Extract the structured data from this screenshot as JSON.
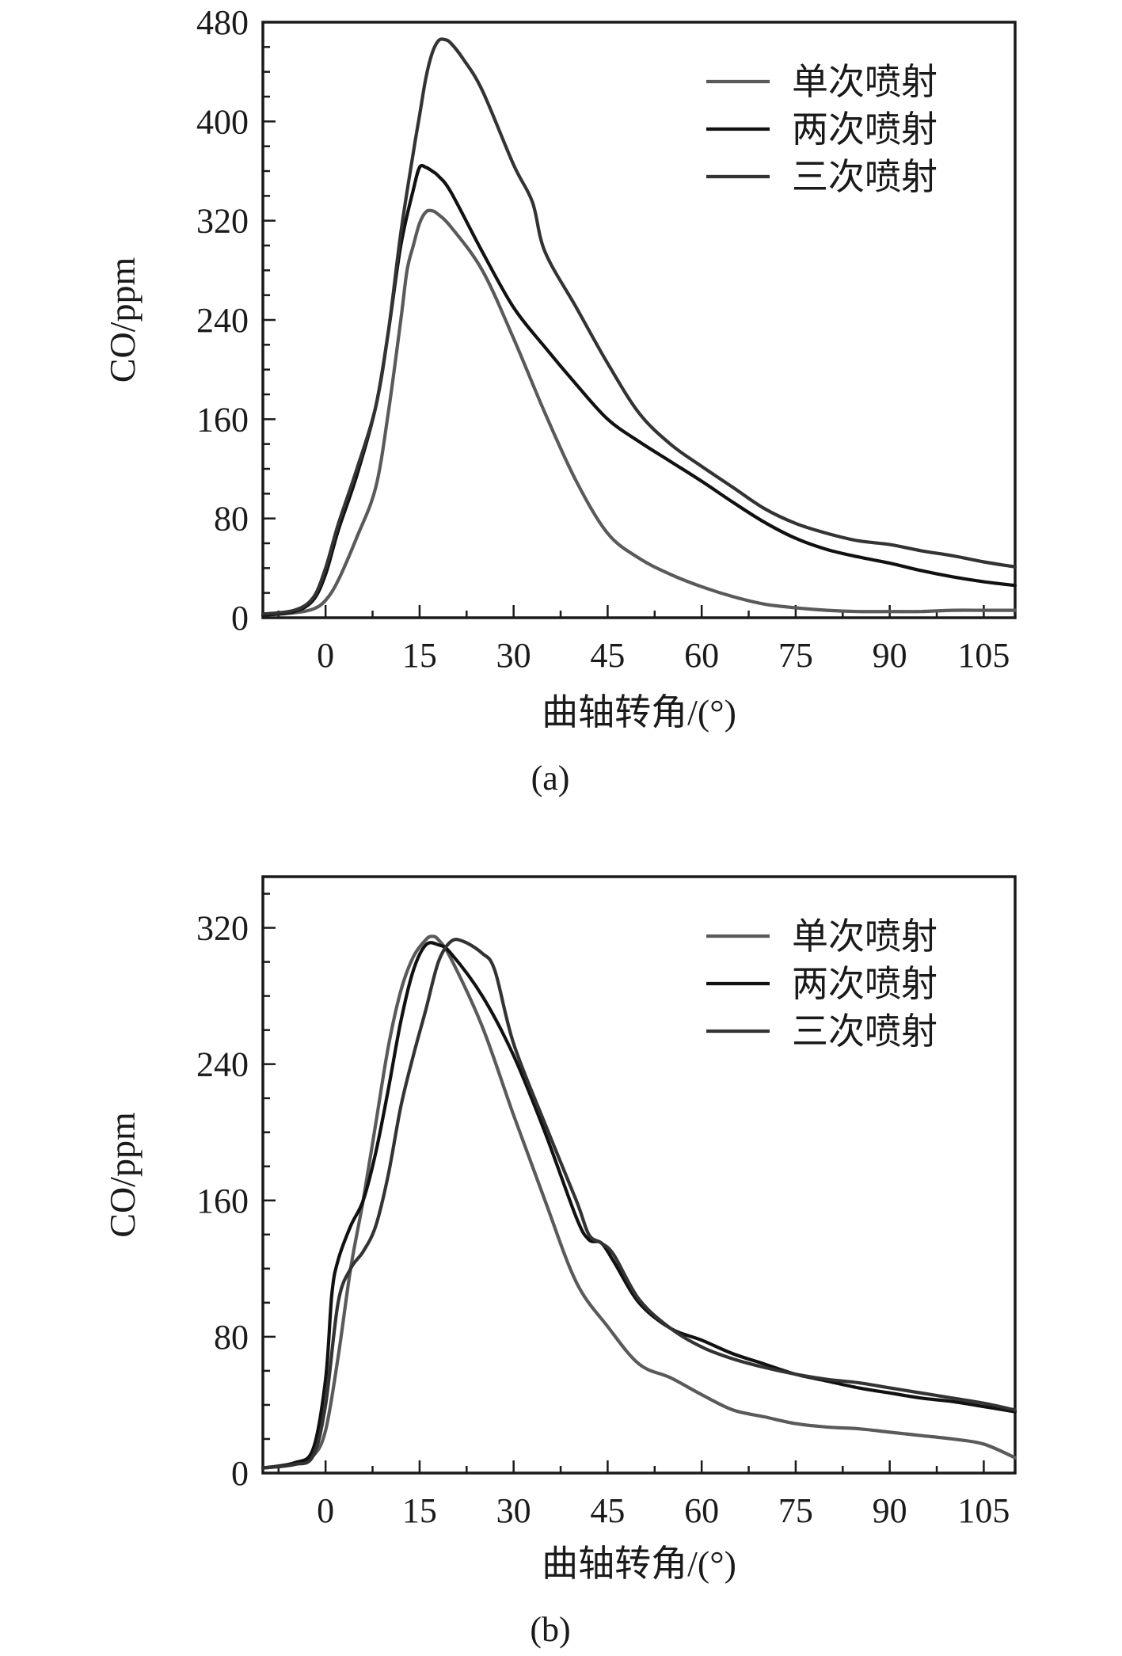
{
  "chart_data": [
    {
      "type": "line",
      "panel_label": "(a)",
      "xlabel": "曲轴转角/(°)",
      "ylabel": "CO/ppm",
      "xlim": [
        -10,
        110
      ],
      "ylim": [
        0,
        480
      ],
      "xticks": [
        0,
        15,
        30,
        45,
        60,
        75,
        90,
        105
      ],
      "yticks": [
        0,
        80,
        160,
        240,
        320,
        400,
        480
      ],
      "grid": false,
      "legend_position": "top-right",
      "series": [
        {
          "name": "单次喷射",
          "color": "#5a5a5a",
          "x": [
            -10,
            -5,
            -2,
            0,
            2,
            5,
            8,
            10,
            12,
            13,
            14,
            15,
            16,
            17,
            18,
            20,
            25,
            30,
            35,
            40,
            45,
            50,
            55,
            60,
            65,
            70,
            75,
            80,
            85,
            90,
            95,
            100,
            105,
            110
          ],
          "y": [
            2,
            4,
            7,
            14,
            30,
            65,
            105,
            165,
            240,
            280,
            300,
            318,
            327,
            328,
            325,
            315,
            280,
            225,
            165,
            110,
            68,
            48,
            35,
            25,
            17,
            11,
            8,
            6,
            5,
            5,
            5,
            6,
            6,
            6
          ]
        },
        {
          "name": "两次喷射",
          "color": "#111111",
          "x": [
            -10,
            -5,
            -2,
            0,
            2,
            5,
            8,
            10,
            12,
            14,
            15,
            16,
            17,
            18,
            20,
            25,
            30,
            35,
            40,
            45,
            50,
            55,
            60,
            65,
            70,
            75,
            80,
            85,
            90,
            95,
            100,
            105,
            110
          ],
          "y": [
            2,
            5,
            14,
            35,
            70,
            115,
            170,
            230,
            300,
            345,
            363,
            363,
            360,
            356,
            343,
            295,
            250,
            218,
            188,
            160,
            142,
            126,
            110,
            93,
            77,
            64,
            55,
            49,
            44,
            38,
            33,
            29,
            26
          ]
        },
        {
          "name": "三次喷射",
          "color": "#333333",
          "x": [
            -10,
            -5,
            -2,
            0,
            2,
            5,
            8,
            10,
            12,
            14,
            15,
            16,
            17,
            18,
            19,
            20,
            22,
            25,
            30,
            33,
            35,
            40,
            45,
            50,
            55,
            60,
            65,
            70,
            75,
            80,
            85,
            90,
            95,
            100,
            105,
            110
          ],
          "y": [
            3,
            6,
            16,
            40,
            75,
            120,
            170,
            230,
            310,
            375,
            405,
            435,
            455,
            465,
            466,
            463,
            450,
            425,
            365,
            335,
            295,
            250,
            205,
            165,
            140,
            122,
            105,
            88,
            76,
            68,
            62,
            59,
            54,
            50,
            45,
            41
          ]
        }
      ]
    },
    {
      "type": "line",
      "panel_label": "(b)",
      "xlabel": "曲轴转角/(°)",
      "ylabel": "CO/ppm",
      "xlim": [
        -10,
        110
      ],
      "ylim": [
        0,
        350
      ],
      "xticks": [
        0,
        15,
        30,
        45,
        60,
        75,
        90,
        105
      ],
      "yticks": [
        0,
        80,
        160,
        240,
        320
      ],
      "grid": false,
      "legend_position": "top-right",
      "series": [
        {
          "name": "单次喷射",
          "color": "#5a5a5a",
          "x": [
            -10,
            -5,
            -2,
            0,
            2,
            4,
            6,
            8,
            10,
            12,
            14,
            16,
            17,
            18,
            20,
            25,
            30,
            35,
            40,
            45,
            50,
            55,
            60,
            65,
            70,
            75,
            80,
            85,
            90,
            95,
            100,
            105,
            110
          ],
          "y": [
            3,
            5,
            10,
            25,
            68,
            120,
            160,
            205,
            250,
            283,
            303,
            313,
            315,
            313,
            302,
            262,
            210,
            160,
            112,
            86,
            64,
            56,
            46,
            37,
            33,
            29,
            27,
            26,
            24,
            22,
            20,
            17,
            9
          ]
        },
        {
          "name": "两次喷射",
          "color": "#111111",
          "x": [
            -10,
            -5,
            -2,
            0,
            1,
            2,
            4,
            6,
            8,
            10,
            12,
            14,
            16,
            18,
            20,
            25,
            30,
            35,
            40,
            42,
            44,
            46,
            50,
            55,
            60,
            65,
            70,
            75,
            80,
            85,
            90,
            95,
            100,
            105,
            110
          ],
          "y": [
            3,
            6,
            14,
            55,
            105,
            125,
            145,
            160,
            188,
            225,
            265,
            295,
            310,
            310,
            305,
            280,
            245,
            200,
            150,
            137,
            135,
            124,
            100,
            85,
            78,
            70,
            64,
            58,
            54,
            50,
            47,
            44,
            42,
            39,
            36
          ]
        },
        {
          "name": "三次喷射",
          "color": "#333333",
          "x": [
            -10,
            -5,
            -2,
            0,
            2,
            4,
            6,
            8,
            10,
            12,
            14,
            16,
            18,
            20,
            22,
            25,
            27,
            30,
            35,
            40,
            42,
            44,
            46,
            50,
            55,
            60,
            65,
            70,
            75,
            80,
            85,
            90,
            95,
            100,
            105,
            110
          ],
          "y": [
            3,
            5,
            10,
            40,
            100,
            120,
            130,
            145,
            175,
            215,
            245,
            272,
            300,
            312,
            312,
            305,
            295,
            252,
            205,
            160,
            140,
            135,
            128,
            102,
            85,
            74,
            67,
            62,
            58,
            55,
            53,
            50,
            47,
            44,
            41,
            37
          ]
        }
      ]
    }
  ]
}
